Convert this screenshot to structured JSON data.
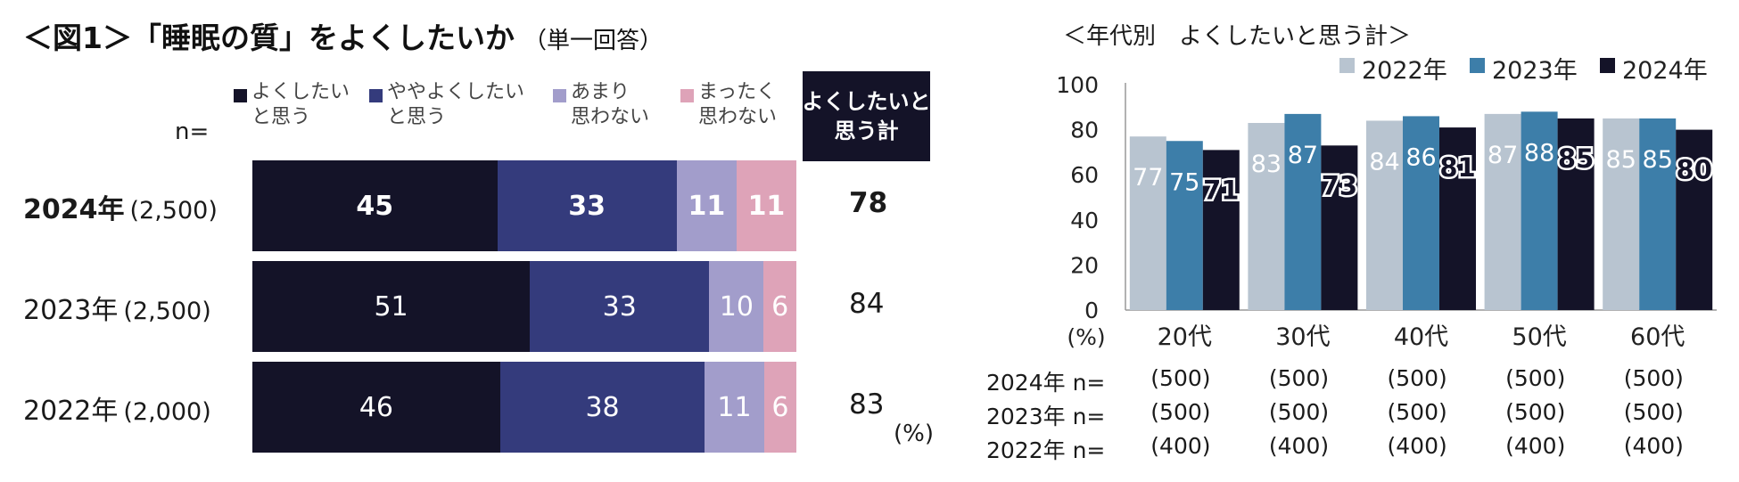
{
  "left": {
    "title": "＜図1＞「睡眠の質」をよくしたいか",
    "subtitle": "（単一回答）",
    "n_label": "n=",
    "legend": [
      {
        "label": "よくしたい\nと思う",
        "color": "#141328"
      },
      {
        "label": "ややよくしたい\nと思う",
        "color": "#343b7c"
      },
      {
        "label": "あまり\n思わない",
        "color": "#a29dcb"
      },
      {
        "label": "まったく\n思わない",
        "color": "#dea3b8"
      }
    ],
    "sum_box": "よくしたいと\n思う計",
    "pct_unit": "(%)"
  },
  "right": {
    "title": "＜年代別　よくしたいと思う計＞",
    "n_rows": [
      {
        "label": "2024年 n=",
        "values": [
          "(500)",
          "(500)",
          "(500)",
          "(500)",
          "(500)"
        ]
      },
      {
        "label": "2023年 n=",
        "values": [
          "(500)",
          "(500)",
          "(500)",
          "(500)",
          "(500)"
        ]
      },
      {
        "label": "2022年 n=",
        "values": [
          "(400)",
          "(400)",
          "(400)",
          "(400)",
          "(400)"
        ]
      }
    ]
  },
  "chart_data": [
    {
      "type": "bar",
      "orientation": "horizontal-stacked",
      "title": "＜図1＞「睡眠の質」をよくしたいか",
      "categories": [
        "2024年",
        "2023年",
        "2022年"
      ],
      "n": [
        "(2,500)",
        "(2,500)",
        "(2,000)"
      ],
      "series": [
        {
          "name": "よくしたいと思う",
          "values": [
            45,
            51,
            46
          ],
          "color": "#141328"
        },
        {
          "name": "ややよくしたいと思う",
          "values": [
            33,
            33,
            38
          ],
          "color": "#343b7c"
        },
        {
          "name": "あまり思わない",
          "values": [
            11,
            10,
            11
          ],
          "color": "#a29dcb"
        },
        {
          "name": "まったく思わない",
          "values": [
            11,
            6,
            6
          ],
          "color": "#dea3b8"
        }
      ],
      "totals": {
        "label": "よくしたいと思う計",
        "values": [
          78,
          84,
          83
        ]
      },
      "xlim": [
        0,
        100
      ]
    },
    {
      "type": "bar",
      "title": "＜年代別　よくしたいと思う計＞",
      "categories": [
        "20代",
        "30代",
        "40代",
        "50代",
        "60代"
      ],
      "series": [
        {
          "name": "2022年",
          "values": [
            77,
            83,
            84,
            87,
            85
          ],
          "color": "#b8c4d0"
        },
        {
          "name": "2023年",
          "values": [
            75,
            87,
            86,
            88,
            85
          ],
          "color": "#3d7ea9"
        },
        {
          "name": "2024年",
          "values": [
            71,
            73,
            81,
            85,
            80
          ],
          "color": "#141328"
        }
      ],
      "ylabel": "(%)",
      "ylim": [
        0,
        100
      ],
      "yticks": [
        0,
        20,
        40,
        60,
        80,
        100
      ],
      "legend_position": "top-right",
      "grid": false
    }
  ]
}
